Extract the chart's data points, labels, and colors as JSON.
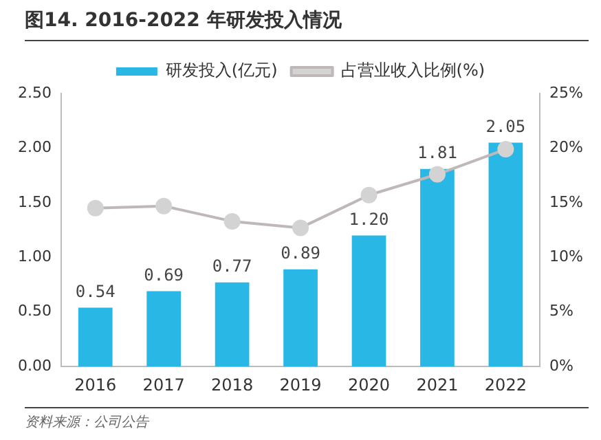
{
  "chart_data": {
    "type": "bar",
    "title": "图14. 2016-2022 年研发投入情况",
    "categories": [
      "2016",
      "2017",
      "2018",
      "2019",
      "2020",
      "2021",
      "2022"
    ],
    "series": [
      {
        "name": "研发投入(亿元)",
        "color": "#29b7e6",
        "values": [
          0.54,
          0.69,
          0.77,
          0.89,
          1.2,
          1.81,
          2.05
        ],
        "value_labels": [
          "0.54",
          "0.69",
          "0.77",
          "0.89",
          "1.20",
          "1.81",
          "2.05"
        ]
      },
      {
        "name": "占营业收入比例(%)",
        "type": "line",
        "axis": "y2",
        "color": "#bfb8b8",
        "marker": "circle",
        "values": [
          14.5,
          14.7,
          13.3,
          12.7,
          15.7,
          17.6,
          19.9
        ]
      }
    ],
    "ylim": [
      0,
      2.5
    ],
    "yticks": [
      {
        "value": 0,
        "label": "0.00"
      },
      {
        "value": 0.5,
        "label": "0.50"
      },
      {
        "value": 1,
        "label": "1.00"
      },
      {
        "value": 1.5,
        "label": "1.50"
      },
      {
        "value": 2,
        "label": "2.00"
      },
      {
        "value": 2.5,
        "label": "2.50"
      }
    ],
    "y2lim": [
      0,
      25
    ],
    "y2ticks": [
      {
        "value": 0,
        "label": "0%"
      },
      {
        "value": 5,
        "label": "5%"
      },
      {
        "value": 10,
        "label": "10%"
      },
      {
        "value": 15,
        "label": "15%"
      },
      {
        "value": 20,
        "label": "20%"
      },
      {
        "value": 25,
        "label": "25%"
      }
    ],
    "legend": "top",
    "grid": false,
    "annotations": [
      "资料来源：公司公告"
    ]
  }
}
